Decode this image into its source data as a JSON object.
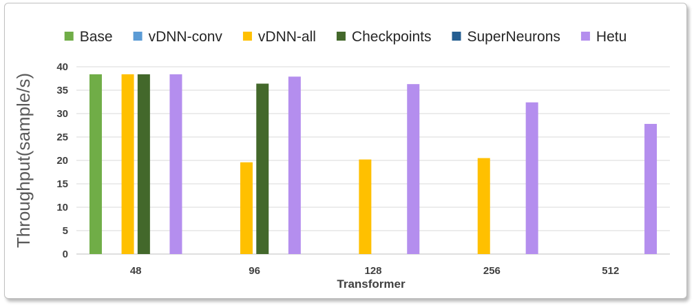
{
  "chart_data": {
    "type": "bar",
    "title": "",
    "xlabel": "Transformer",
    "ylabel": "Throughput(sample/s)",
    "categories": [
      "48",
      "96",
      "128",
      "256",
      "512"
    ],
    "ylim": [
      0,
      40
    ],
    "yticks": [
      "0",
      "5",
      "10",
      "15",
      "20",
      "25",
      "30",
      "35",
      "40"
    ],
    "grid": true,
    "legend_position": "top",
    "series": [
      {
        "name": "Base",
        "color": "#70AD47",
        "values": [
          38.4,
          null,
          null,
          null,
          null
        ]
      },
      {
        "name": "vDNN-conv",
        "color": "#5B9BD5",
        "values": [
          null,
          null,
          null,
          null,
          null
        ]
      },
      {
        "name": "vDNN-all",
        "color": "#FFC000",
        "values": [
          38.4,
          19.6,
          20.2,
          20.5,
          null
        ]
      },
      {
        "name": "Checkpoints",
        "color": "#43682B",
        "values": [
          38.4,
          36.4,
          null,
          null,
          null
        ]
      },
      {
        "name": "SuperNeurons",
        "color": "#255E91",
        "values": [
          null,
          null,
          null,
          null,
          null
        ]
      },
      {
        "name": "Hetu",
        "color": "#B48EEE",
        "values": [
          38.4,
          37.9,
          36.3,
          32.4,
          27.8
        ]
      }
    ]
  }
}
